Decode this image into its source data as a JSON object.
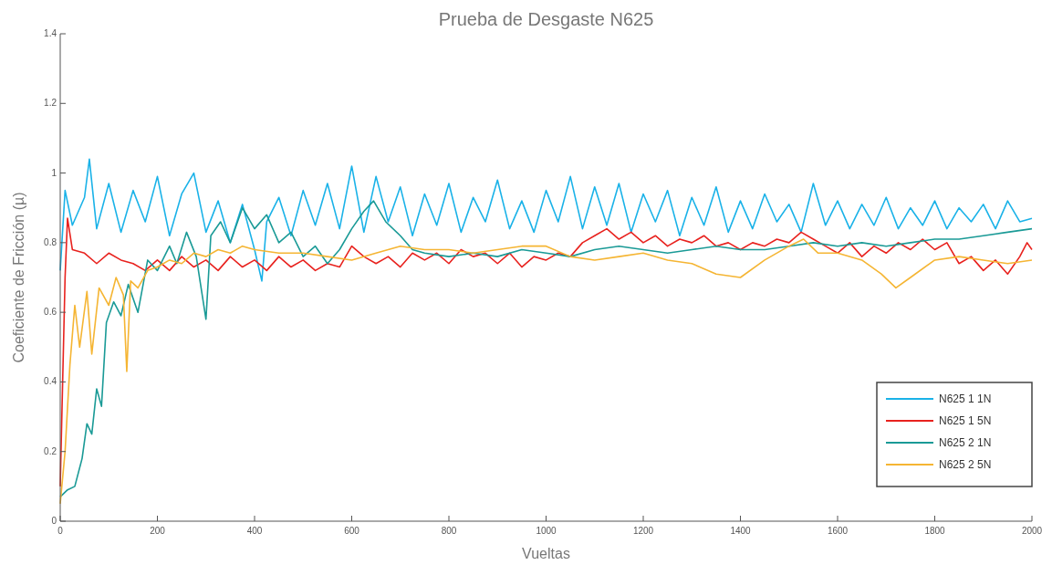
{
  "chart_data": {
    "type": "line",
    "title": "Prueba de Desgaste N625",
    "xlabel": "Vueltas",
    "ylabel": "Coeficiente de Fricción (µ)",
    "xlim": [
      0,
      2000
    ],
    "xticks": [
      0,
      200,
      400,
      600,
      800,
      1000,
      1200,
      1400,
      1600,
      1800,
      2000
    ],
    "ylim": [
      0,
      1.4
    ],
    "yticks": [
      0,
      0.2,
      0.4,
      0.6,
      0.8,
      1,
      1.2,
      1.4
    ],
    "legend": "bottom right",
    "grid": false,
    "marker": "none",
    "line_style": "solid",
    "series": [
      {
        "name": "N625 1 1N",
        "color": "#1ab2e8",
        "x": [
          0,
          10,
          25,
          50,
          60,
          75,
          100,
          125,
          150,
          175,
          200,
          225,
          250,
          275,
          300,
          325,
          350,
          375,
          400,
          415,
          425,
          450,
          475,
          500,
          525,
          550,
          575,
          600,
          625,
          650,
          675,
          700,
          725,
          750,
          775,
          800,
          825,
          850,
          875,
          900,
          925,
          950,
          975,
          1000,
          1025,
          1050,
          1075,
          1100,
          1125,
          1150,
          1175,
          1200,
          1225,
          1250,
          1275,
          1300,
          1325,
          1350,
          1375,
          1400,
          1425,
          1450,
          1475,
          1500,
          1525,
          1550,
          1575,
          1600,
          1625,
          1650,
          1675,
          1700,
          1725,
          1750,
          1775,
          1800,
          1825,
          1850,
          1875,
          1900,
          1925,
          1950,
          1975,
          2000
        ],
        "values": [
          0.72,
          0.95,
          0.85,
          0.93,
          1.04,
          0.84,
          0.97,
          0.83,
          0.95,
          0.86,
          0.99,
          0.82,
          0.94,
          1.0,
          0.83,
          0.92,
          0.8,
          0.91,
          0.78,
          0.69,
          0.86,
          0.93,
          0.82,
          0.95,
          0.85,
          0.97,
          0.84,
          1.02,
          0.83,
          0.99,
          0.86,
          0.96,
          0.82,
          0.94,
          0.85,
          0.97,
          0.83,
          0.93,
          0.86,
          0.98,
          0.84,
          0.92,
          0.83,
          0.95,
          0.86,
          0.99,
          0.84,
          0.96,
          0.85,
          0.97,
          0.83,
          0.94,
          0.86,
          0.95,
          0.82,
          0.93,
          0.85,
          0.96,
          0.83,
          0.92,
          0.84,
          0.94,
          0.86,
          0.91,
          0.83,
          0.97,
          0.85,
          0.92,
          0.84,
          0.91,
          0.85,
          0.93,
          0.84,
          0.9,
          0.85,
          0.92,
          0.84,
          0.9,
          0.86,
          0.91,
          0.84,
          0.92,
          0.86,
          0.87
        ]
      },
      {
        "name": "N625 1 5N",
        "color": "#e8221e",
        "x": [
          0,
          5,
          10,
          15,
          25,
          50,
          75,
          100,
          125,
          150,
          175,
          200,
          225,
          250,
          275,
          300,
          325,
          350,
          375,
          400,
          425,
          450,
          475,
          500,
          525,
          550,
          575,
          600,
          625,
          650,
          675,
          700,
          725,
          750,
          775,
          800,
          825,
          850,
          875,
          900,
          925,
          950,
          975,
          1000,
          1025,
          1050,
          1075,
          1100,
          1125,
          1150,
          1175,
          1200,
          1225,
          1250,
          1275,
          1300,
          1325,
          1350,
          1375,
          1400,
          1425,
          1450,
          1475,
          1500,
          1525,
          1550,
          1575,
          1600,
          1625,
          1650,
          1675,
          1700,
          1725,
          1750,
          1775,
          1800,
          1825,
          1850,
          1875,
          1900,
          1925,
          1950,
          1975,
          1990,
          2000
        ],
        "values": [
          0.1,
          0.4,
          0.7,
          0.87,
          0.78,
          0.77,
          0.74,
          0.77,
          0.75,
          0.74,
          0.72,
          0.75,
          0.72,
          0.76,
          0.73,
          0.75,
          0.72,
          0.76,
          0.73,
          0.75,
          0.72,
          0.76,
          0.73,
          0.75,
          0.72,
          0.74,
          0.73,
          0.79,
          0.76,
          0.74,
          0.76,
          0.73,
          0.77,
          0.75,
          0.77,
          0.74,
          0.78,
          0.76,
          0.77,
          0.74,
          0.77,
          0.73,
          0.76,
          0.75,
          0.77,
          0.76,
          0.8,
          0.82,
          0.84,
          0.81,
          0.83,
          0.8,
          0.82,
          0.79,
          0.81,
          0.8,
          0.82,
          0.79,
          0.8,
          0.78,
          0.8,
          0.79,
          0.81,
          0.8,
          0.83,
          0.81,
          0.79,
          0.77,
          0.8,
          0.76,
          0.79,
          0.77,
          0.8,
          0.78,
          0.81,
          0.78,
          0.8,
          0.74,
          0.76,
          0.72,
          0.75,
          0.71,
          0.76,
          0.8,
          0.78
        ]
      },
      {
        "name": "N625 2 1N",
        "color": "#1a9a96",
        "x": [
          0,
          15,
          30,
          45,
          55,
          65,
          75,
          85,
          95,
          110,
          125,
          140,
          160,
          180,
          200,
          225,
          240,
          260,
          280,
          300,
          310,
          330,
          350,
          375,
          400,
          425,
          450,
          475,
          500,
          525,
          550,
          575,
          600,
          625,
          645,
          670,
          700,
          725,
          750,
          800,
          850,
          900,
          950,
          1000,
          1050,
          1100,
          1150,
          1200,
          1250,
          1300,
          1350,
          1400,
          1450,
          1500,
          1550,
          1600,
          1650,
          1700,
          1750,
          1800,
          1850,
          1900,
          1950,
          2000
        ],
        "values": [
          0.07,
          0.09,
          0.1,
          0.18,
          0.28,
          0.25,
          0.38,
          0.33,
          0.57,
          0.63,
          0.59,
          0.68,
          0.6,
          0.75,
          0.72,
          0.79,
          0.74,
          0.83,
          0.76,
          0.58,
          0.82,
          0.86,
          0.8,
          0.9,
          0.84,
          0.88,
          0.8,
          0.83,
          0.76,
          0.79,
          0.74,
          0.78,
          0.84,
          0.89,
          0.92,
          0.86,
          0.82,
          0.78,
          0.77,
          0.76,
          0.77,
          0.76,
          0.78,
          0.77,
          0.76,
          0.78,
          0.79,
          0.78,
          0.77,
          0.78,
          0.79,
          0.78,
          0.78,
          0.79,
          0.8,
          0.79,
          0.8,
          0.79,
          0.8,
          0.81,
          0.81,
          0.82,
          0.83,
          0.84
        ]
      },
      {
        "name": "N625 2 5N",
        "color": "#f5b533",
        "x": [
          0,
          10,
          20,
          30,
          40,
          55,
          65,
          80,
          100,
          115,
          130,
          137,
          145,
          160,
          180,
          200,
          225,
          250,
          275,
          300,
          325,
          350,
          375,
          400,
          450,
          500,
          550,
          600,
          650,
          700,
          750,
          800,
          850,
          900,
          950,
          1000,
          1050,
          1100,
          1150,
          1200,
          1250,
          1300,
          1350,
          1400,
          1450,
          1500,
          1530,
          1560,
          1600,
          1650,
          1690,
          1720,
          1750,
          1800,
          1850,
          1900,
          1950,
          2000
        ],
        "values": [
          0.05,
          0.2,
          0.45,
          0.62,
          0.5,
          0.66,
          0.48,
          0.67,
          0.62,
          0.7,
          0.65,
          0.43,
          0.69,
          0.67,
          0.72,
          0.73,
          0.75,
          0.74,
          0.77,
          0.76,
          0.78,
          0.77,
          0.79,
          0.78,
          0.77,
          0.77,
          0.76,
          0.75,
          0.77,
          0.79,
          0.78,
          0.78,
          0.77,
          0.78,
          0.79,
          0.79,
          0.76,
          0.75,
          0.76,
          0.77,
          0.75,
          0.74,
          0.71,
          0.7,
          0.75,
          0.79,
          0.81,
          0.77,
          0.77,
          0.75,
          0.71,
          0.67,
          0.7,
          0.75,
          0.76,
          0.75,
          0.74,
          0.75
        ]
      }
    ]
  }
}
